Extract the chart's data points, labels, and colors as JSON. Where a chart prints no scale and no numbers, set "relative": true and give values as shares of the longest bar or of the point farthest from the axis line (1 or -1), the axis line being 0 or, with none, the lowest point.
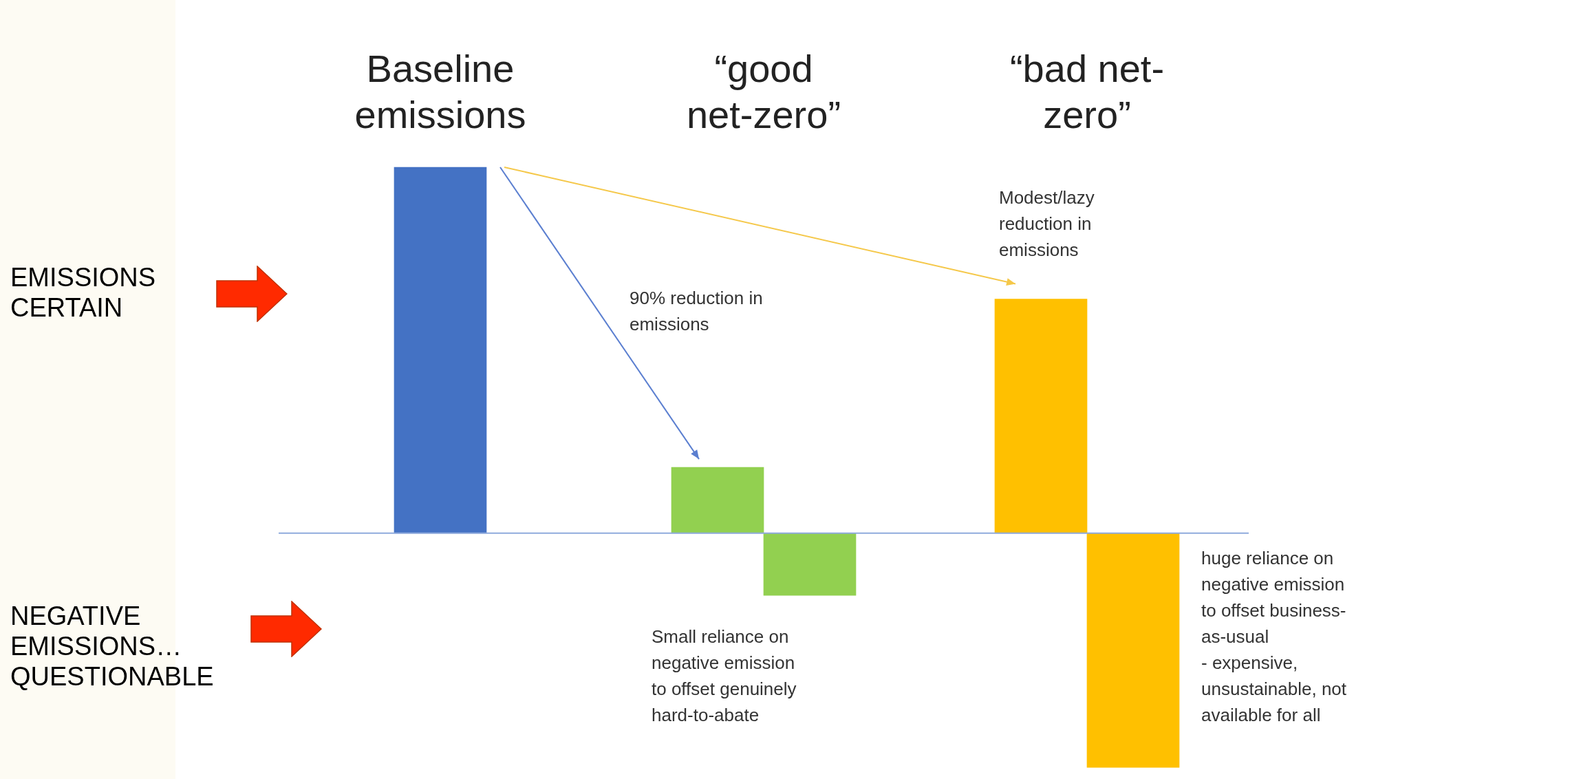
{
  "chart_data": {
    "type": "bar",
    "relative": true,
    "categories": [
      "Baseline\nemissions",
      "“good\nnet-zero”",
      "“bad net-\nzero”"
    ],
    "series": [
      {
        "values": [
          1,
          0.18,
          0.64
        ],
        "colors": [
          "#4472c4",
          "#92d050",
          "#ffc000"
        ]
      },
      {
        "values": [
          null,
          -0.17,
          -0.64
        ],
        "colors": [
          null,
          "#92d050",
          "#ffc000"
        ]
      }
    ],
    "annotations": [
      "EMISSIONS\nCERTAIN",
      "NEGATIVE\nEMISSIONS…\nQUESTIONABLE",
      "Modest/lazy\nreduction in\nemissions",
      "90% reduction in\nemissions",
      "Small reliance on\nnegative emission\nto offset genuinely\nhard-to-abate",
      "huge reliance on\nnegative emission\nto offset business-\nas-usual\n- expensive,\nunsustainable, not\navailable for all"
    ],
    "ref_lines": [
      {
        "axis": "y",
        "value": 0,
        "color": "#8faadc"
      }
    ]
  }
}
